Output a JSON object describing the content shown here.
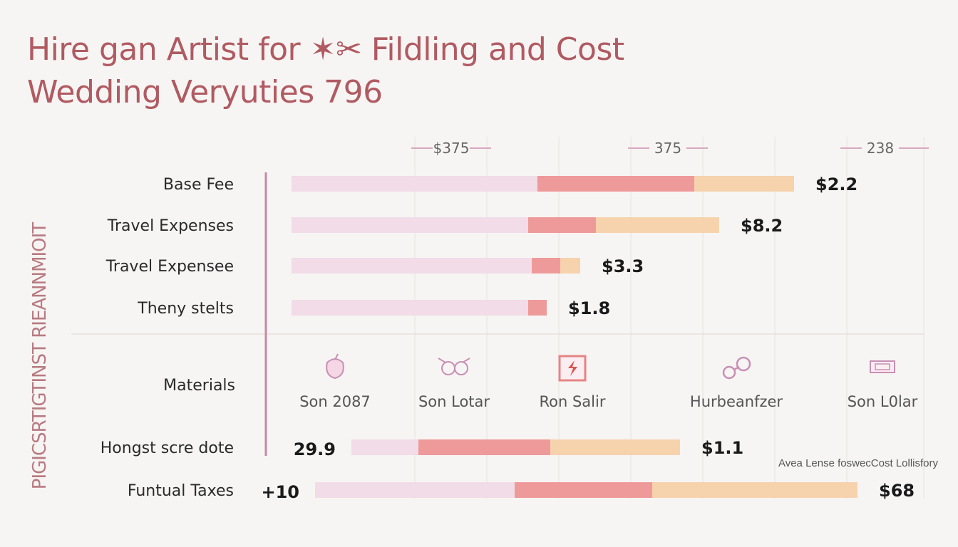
{
  "title": {
    "line1": "Hire gan Artist for ✶✂ Fildling and Cost",
    "line2": "Wedding Veryuties 796"
  },
  "y_axis_label": "PIGICSRTIGTINST RIEANNMIOIT",
  "note": "Avea Lense foswecCost Lollisfory",
  "colors": {
    "segment1": "#f1dce8",
    "segment2": "#ef9a9a",
    "segment3": "#f6d2ad",
    "axis": "#c58aa6",
    "title": "#b05a62"
  },
  "chart_data": {
    "type": "bar",
    "orientation": "horizontal",
    "stacked": true,
    "top_ticks": [
      "$375",
      "375",
      "238"
    ],
    "rows": [
      {
        "category": "Base Fee",
        "segments": [
          345,
          220,
          140
        ],
        "value_label": "$2.2"
      },
      {
        "category": "Travel Expenses",
        "segments": [
          332,
          95,
          173
        ],
        "value_label": "$8.2"
      },
      {
        "category": "Travel Expensee",
        "segments": [
          337,
          40,
          28
        ],
        "value_label": "$3.3"
      },
      {
        "category": "Theny stelts",
        "segments": [
          332,
          26,
          0
        ],
        "value_label": "$1.8"
      },
      {
        "category": "Hongst scre dote",
        "segments": [
          94,
          185,
          182
        ],
        "value_label": "$1.1",
        "left_label": "29.9",
        "offset": 84
      },
      {
        "category": "Funtual Taxes",
        "segments": [
          280,
          193,
          288
        ],
        "value_label": "$68",
        "left_label": "+10",
        "offset": 33
      }
    ],
    "materials": {
      "category": "Materials",
      "items": [
        {
          "label": "Son 2087",
          "icon": "apple-icon"
        },
        {
          "label": "Son Lotar",
          "icon": "rings-icon"
        },
        {
          "label": "Ron Salir",
          "icon": "lightning-frame-icon"
        },
        {
          "label": "Hurbeanfzer",
          "icon": "chain-icon"
        },
        {
          "label": "Son L0lar",
          "icon": "tray-icon"
        }
      ]
    }
  }
}
